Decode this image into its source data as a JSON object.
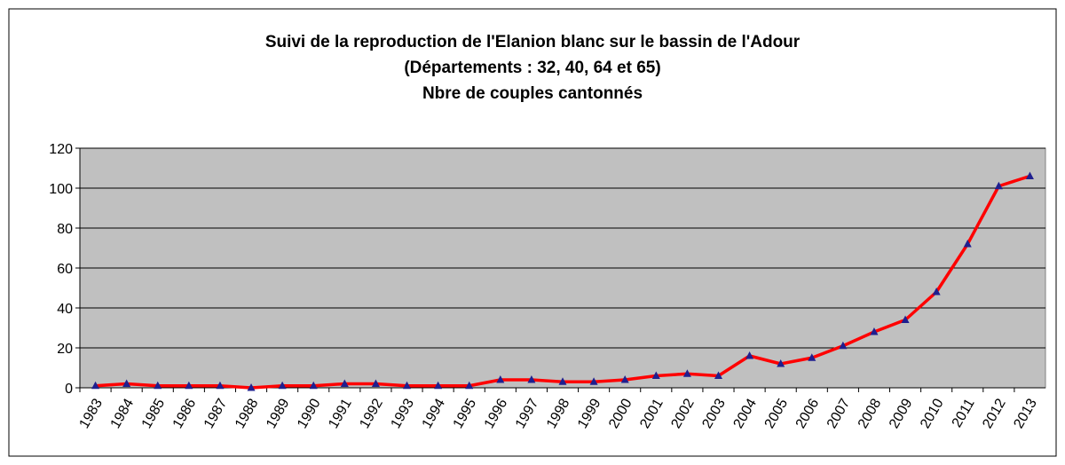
{
  "chart_data": {
    "type": "line",
    "title": [
      "Suivi de la reproduction de l'Elanion blanc sur le bassin de l'Adour",
      "(Départements : 32, 40, 64 et 65)",
      "Nbre de couples cantonnés"
    ],
    "categories": [
      "1983",
      "1984",
      "1985",
      "1986",
      "1987",
      "1988",
      "1989",
      "1990",
      "1991",
      "1992",
      "1993",
      "1994",
      "1995",
      "1996",
      "1997",
      "1998",
      "1999",
      "2000",
      "2001",
      "2002",
      "2003",
      "2004",
      "2005",
      "2006",
      "2007",
      "2008",
      "2009",
      "2010",
      "2011",
      "2012",
      "2013"
    ],
    "series": [
      {
        "color": "#ff0000",
        "marker_color": "#1f1f8f",
        "values": [
          1,
          2,
          1,
          1,
          1,
          0,
          1,
          1,
          2,
          2,
          1,
          1,
          1,
          4,
          4,
          3,
          3,
          4,
          6,
          7,
          6,
          16,
          12,
          15,
          21,
          28,
          34,
          48,
          72,
          101,
          106
        ]
      }
    ],
    "ylim": [
      0,
      120
    ],
    "yticks": [
      0,
      20,
      40,
      60,
      80,
      100,
      120
    ],
    "grid": true,
    "plot_background": "#c0c0c0"
  }
}
